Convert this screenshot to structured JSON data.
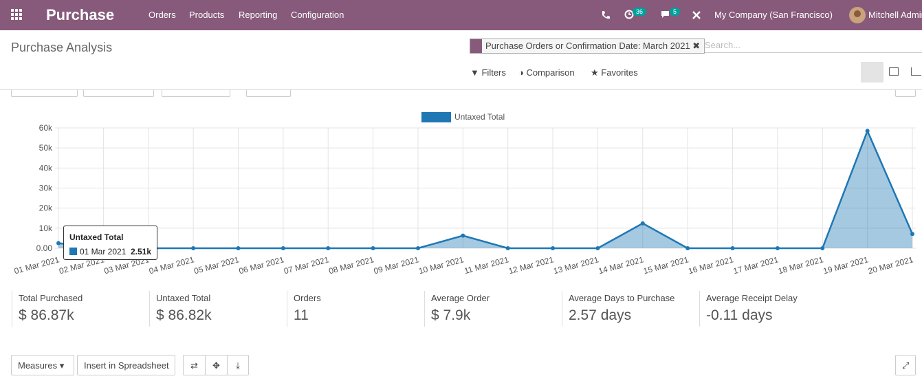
{
  "navbar": {
    "app": "Purchase",
    "menu": [
      "Orders",
      "Products",
      "Reporting",
      "Configuration"
    ],
    "activity_badge": "36",
    "message_badge": "5",
    "company": "My Company (San Francisco)",
    "user": "Mitchell Admin"
  },
  "control_panel": {
    "breadcrumb": "Purchase Analysis",
    "facet": "Purchase Orders or Confirmation Date: March 2021",
    "search_placeholder": "Search...",
    "filters": "Filters",
    "comparison": "Comparison",
    "favorites": "Favorites"
  },
  "chart_data": {
    "type": "line",
    "categories": [
      "01 Mar 2021",
      "02 Mar 2021",
      "03 Mar 2021",
      "04 Mar 2021",
      "05 Mar 2021",
      "06 Mar 2021",
      "07 Mar 2021",
      "08 Mar 2021",
      "09 Mar 2021",
      "10 Mar 2021",
      "11 Mar 2021",
      "12 Mar 2021",
      "13 Mar 2021",
      "14 Mar 2021",
      "15 Mar 2021",
      "16 Mar 2021",
      "17 Mar 2021",
      "18 Mar 2021",
      "19 Mar 2021",
      "20 Mar 2021"
    ],
    "series": [
      {
        "name": "Untaxed Total",
        "color": "#1f77b4",
        "values": [
          2510,
          0,
          0,
          0,
          0,
          0,
          0,
          0,
          0,
          6300,
          0,
          0,
          0,
          12400,
          0,
          0,
          0,
          0,
          58500,
          7100
        ]
      }
    ],
    "ylim": [
      0,
      60000
    ],
    "yticks": [
      {
        "value": 0,
        "label": "0.00"
      },
      {
        "value": 10000,
        "label": "10k"
      },
      {
        "value": 20000,
        "label": "20k"
      },
      {
        "value": 30000,
        "label": "30k"
      },
      {
        "value": 40000,
        "label": "40k"
      },
      {
        "value": 50000,
        "label": "50k"
      },
      {
        "value": 60000,
        "label": "60k"
      }
    ],
    "grid": true,
    "area": true,
    "legend": "top",
    "tooltip": {
      "value_label": "2.51k"
    }
  },
  "kpis": [
    {
      "label": "Total Purchased",
      "value": "$ 86.87k"
    },
    {
      "label": "Untaxed Total",
      "value": "$ 86.82k"
    },
    {
      "label": "Orders",
      "value": "11"
    },
    {
      "label": "Average Order",
      "value": "$ 7.9k"
    },
    {
      "label": "Average Days to Purchase",
      "value": "2.57 days"
    },
    {
      "label": "Average Receipt Delay",
      "value": "-0.11 days"
    }
  ],
  "pivot_toolbar": {
    "measures": "Measures",
    "insert": "Insert in Spreadsheet"
  }
}
